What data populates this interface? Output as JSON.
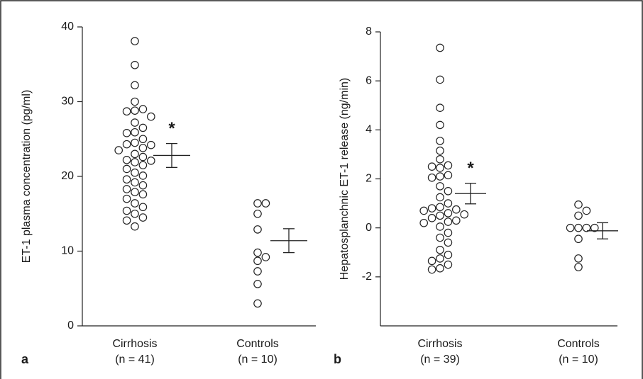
{
  "chart_data": [
    {
      "type": "strip",
      "panel_label": "a",
      "y_label": "ET-1 plasma concentration (pg/ml)",
      "categories": [
        "Cirrhosis",
        "Controls"
      ],
      "category_notes": [
        "(n = 41)",
        "(n = 10)"
      ],
      "ylim": [
        0,
        40
      ],
      "yticks": [
        0,
        10,
        20,
        30,
        40
      ],
      "groups": [
        {
          "values": [
            38.1,
            34.9,
            32.2,
            30.0,
            29.0,
            28.8,
            28.7,
            28.0,
            27.2,
            26.5,
            25.9,
            25.8,
            25.0,
            24.5,
            24.3,
            24.2,
            23.8,
            23.5,
            23.0,
            22.6,
            22.2,
            22.1,
            21.9,
            21.5,
            21.0,
            20.5,
            20.1,
            19.6,
            19.2,
            18.8,
            18.3,
            17.9,
            17.6,
            17.0,
            16.4,
            15.9,
            15.4,
            15.0,
            14.5,
            14.1,
            13.3
          ],
          "mean": 22.8,
          "error": 1.6,
          "marker": "*"
        },
        {
          "values": [
            16.4,
            16.4,
            15.0,
            12.9,
            9.8,
            9.2,
            8.7,
            7.3,
            5.6,
            3.0
          ],
          "mean": 11.4,
          "error": 1.6
        }
      ]
    },
    {
      "type": "strip",
      "panel_label": "b",
      "y_label": "Hepatosplanchnic ET-1 release (ng/min)",
      "categories": [
        "Cirrhosis",
        "Controls"
      ],
      "category_notes": [
        "(n = 39)",
        "(n = 10)"
      ],
      "ylim": [
        -4,
        8
      ],
      "yticks": [
        -2,
        0,
        2,
        4,
        6,
        8
      ],
      "groups": [
        {
          "values": [
            7.35,
            6.05,
            4.9,
            4.2,
            3.55,
            3.15,
            2.8,
            2.55,
            2.5,
            2.45,
            2.15,
            2.1,
            2.05,
            1.7,
            1.5,
            1.25,
            1.0,
            0.85,
            0.8,
            0.75,
            0.7,
            0.6,
            0.55,
            0.5,
            0.4,
            0.3,
            0.25,
            0.2,
            0.05,
            -0.2,
            -0.4,
            -0.6,
            -0.9,
            -1.1,
            -1.25,
            -1.35,
            -1.5,
            -1.65,
            -1.7
          ],
          "mean": 1.4,
          "error": 0.42,
          "marker": "*"
        },
        {
          "values": [
            0.95,
            0.7,
            0.5,
            0,
            0,
            0,
            0,
            -0.45,
            -1.25,
            -1.6
          ],
          "mean": -0.12,
          "error": 0.33
        }
      ]
    }
  ]
}
